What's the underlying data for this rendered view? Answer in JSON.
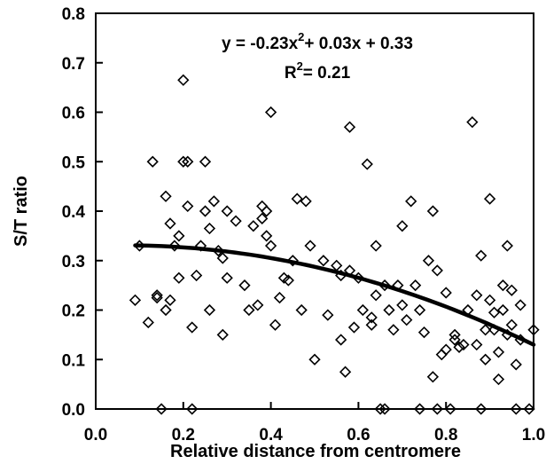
{
  "chart_data": {
    "type": "scatter",
    "xlabel": "Relative distance from centromere",
    "ylabel": "S/T ratio",
    "xlim": [
      0.0,
      1.0
    ],
    "ylim": [
      0.0,
      0.8
    ],
    "x_ticks": [
      "0.0",
      "0.2",
      "0.4",
      "0.6",
      "0.8",
      "1.0"
    ],
    "y_ticks": [
      "0.0",
      "0.1",
      "0.2",
      "0.3",
      "0.4",
      "0.5",
      "0.6",
      "0.7",
      "0.8"
    ],
    "grid": false,
    "marker": "open-diamond",
    "equation": {
      "line1_prefix": "y = -0.23x",
      "line1_exp": "2",
      "line1_suffix": "+ 0.03x + 0.33",
      "line2_prefix": "R",
      "line2_exp": "2",
      "line2_suffix": "= 0.21"
    },
    "fit": {
      "type": "polynomial",
      "coefficients": [
        -0.23,
        0.03,
        0.33
      ]
    },
    "points": [
      [
        0.09,
        0.22
      ],
      [
        0.1,
        0.33
      ],
      [
        0.12,
        0.175
      ],
      [
        0.13,
        0.5
      ],
      [
        0.14,
        0.23
      ],
      [
        0.14,
        0.225
      ],
      [
        0.15,
        0.0
      ],
      [
        0.16,
        0.43
      ],
      [
        0.16,
        0.2
      ],
      [
        0.17,
        0.22
      ],
      [
        0.17,
        0.375
      ],
      [
        0.18,
        0.33
      ],
      [
        0.19,
        0.265
      ],
      [
        0.19,
        0.35
      ],
      [
        0.2,
        0.665
      ],
      [
        0.2,
        0.5
      ],
      [
        0.21,
        0.5
      ],
      [
        0.21,
        0.41
      ],
      [
        0.22,
        0.165
      ],
      [
        0.22,
        0.0
      ],
      [
        0.23,
        0.27
      ],
      [
        0.24,
        0.33
      ],
      [
        0.25,
        0.5
      ],
      [
        0.25,
        0.4
      ],
      [
        0.26,
        0.365
      ],
      [
        0.26,
        0.2
      ],
      [
        0.27,
        0.42
      ],
      [
        0.28,
        0.32
      ],
      [
        0.29,
        0.15
      ],
      [
        0.29,
        0.305
      ],
      [
        0.3,
        0.4
      ],
      [
        0.3,
        0.265
      ],
      [
        0.32,
        0.38
      ],
      [
        0.34,
        0.25
      ],
      [
        0.35,
        0.2
      ],
      [
        0.36,
        0.37
      ],
      [
        0.37,
        0.21
      ],
      [
        0.38,
        0.41
      ],
      [
        0.38,
        0.385
      ],
      [
        0.39,
        0.35
      ],
      [
        0.39,
        0.4
      ],
      [
        0.4,
        0.6
      ],
      [
        0.4,
        0.33
      ],
      [
        0.41,
        0.17
      ],
      [
        0.42,
        0.225
      ],
      [
        0.43,
        0.265
      ],
      [
        0.44,
        0.26
      ],
      [
        0.45,
        0.3
      ],
      [
        0.46,
        0.425
      ],
      [
        0.47,
        0.2
      ],
      [
        0.48,
        0.42
      ],
      [
        0.49,
        0.33
      ],
      [
        0.5,
        0.1
      ],
      [
        0.52,
        0.3
      ],
      [
        0.53,
        0.19
      ],
      [
        0.55,
        0.29
      ],
      [
        0.56,
        0.14
      ],
      [
        0.56,
        0.27
      ],
      [
        0.57,
        0.075
      ],
      [
        0.58,
        0.57
      ],
      [
        0.58,
        0.28
      ],
      [
        0.59,
        0.165
      ],
      [
        0.6,
        0.265
      ],
      [
        0.61,
        0.2
      ],
      [
        0.62,
        0.495
      ],
      [
        0.63,
        0.17
      ],
      [
        0.63,
        0.185
      ],
      [
        0.64,
        0.33
      ],
      [
        0.64,
        0.23
      ],
      [
        0.65,
        0.0
      ],
      [
        0.66,
        0.0
      ],
      [
        0.66,
        0.25
      ],
      [
        0.67,
        0.2
      ],
      [
        0.68,
        0.16
      ],
      [
        0.69,
        0.25
      ],
      [
        0.7,
        0.37
      ],
      [
        0.7,
        0.21
      ],
      [
        0.71,
        0.18
      ],
      [
        0.72,
        0.42
      ],
      [
        0.73,
        0.25
      ],
      [
        0.74,
        0.0
      ],
      [
        0.74,
        0.2
      ],
      [
        0.75,
        0.155
      ],
      [
        0.76,
        0.3
      ],
      [
        0.77,
        0.4
      ],
      [
        0.77,
        0.065
      ],
      [
        0.78,
        0.0
      ],
      [
        0.78,
        0.28
      ],
      [
        0.79,
        0.11
      ],
      [
        0.8,
        0.235
      ],
      [
        0.8,
        0.12
      ],
      [
        0.81,
        0.0
      ],
      [
        0.82,
        0.14
      ],
      [
        0.82,
        0.15
      ],
      [
        0.83,
        0.125
      ],
      [
        0.84,
        0.13
      ],
      [
        0.85,
        0.2
      ],
      [
        0.86,
        0.58
      ],
      [
        0.87,
        0.23
      ],
      [
        0.87,
        0.13
      ],
      [
        0.88,
        0.31
      ],
      [
        0.88,
        0.0
      ],
      [
        0.89,
        0.16
      ],
      [
        0.89,
        0.1
      ],
      [
        0.9,
        0.425
      ],
      [
        0.9,
        0.22
      ],
      [
        0.91,
        0.195
      ],
      [
        0.91,
        0.16
      ],
      [
        0.92,
        0.115
      ],
      [
        0.92,
        0.06
      ],
      [
        0.93,
        0.25
      ],
      [
        0.93,
        0.2
      ],
      [
        0.94,
        0.15
      ],
      [
        0.94,
        0.33
      ],
      [
        0.95,
        0.24
      ],
      [
        0.95,
        0.17
      ],
      [
        0.96,
        0.09
      ],
      [
        0.96,
        0.0
      ],
      [
        0.97,
        0.14
      ],
      [
        0.97,
        0.21
      ],
      [
        1.0,
        0.16
      ],
      [
        0.99,
        0.0
      ]
    ]
  }
}
